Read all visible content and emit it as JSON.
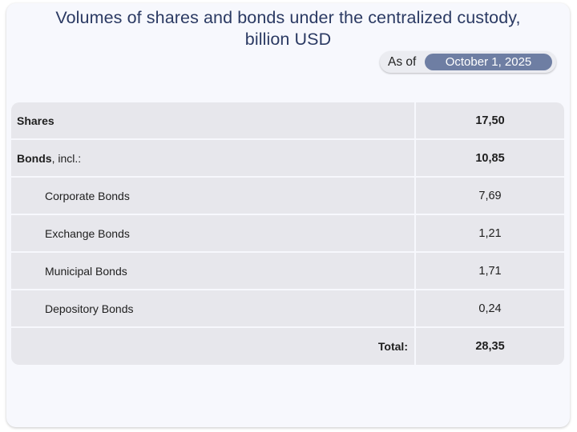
{
  "title_line1": "Volumes of shares and bonds under the centralized custody,",
  "title_line2": "billion USD",
  "date_filter": {
    "label": "As of",
    "value": "October 1, 2025"
  },
  "rows": [
    {
      "label": "Shares",
      "suffix": "",
      "value": "17,50"
    },
    {
      "label": "Bonds",
      "suffix": ", incl.:",
      "value": "10,85"
    },
    {
      "label": "Corporate Bonds",
      "value": "7,69"
    },
    {
      "label": "Exchange Bonds",
      "value": "1,21"
    },
    {
      "label": "Municipal Bonds",
      "value": "1,71"
    },
    {
      "label": "Depository Bonds",
      "value": "0,24"
    }
  ],
  "total": {
    "label": "Total:",
    "value": "28,35"
  },
  "colors": {
    "title": "#2b3a63",
    "accent_pill": "#6e7ea3",
    "row_bg": "#e7e7ec",
    "card_bg": "#f7f8fd"
  }
}
